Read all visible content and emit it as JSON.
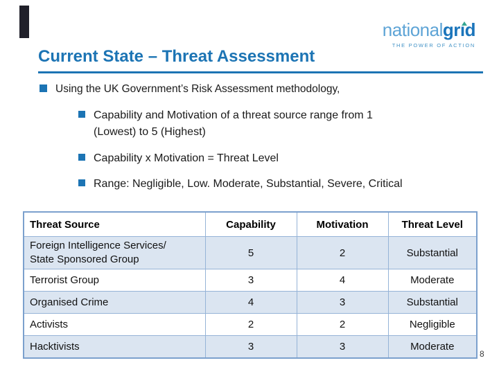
{
  "logo": {
    "part1": "national",
    "part2": "grid",
    "part2_pre": "gr",
    "part2_i": "ı",
    "part2_post": "d",
    "tagline": "THE POWER OF ACTION"
  },
  "title": "Current State – Threat Assessment",
  "bullets": {
    "level1": "Using the UK Government’s Risk Assessment methodology,",
    "level2": [
      "Capability and Motivation of a threat source range from 1\n(Lowest) to 5 (Highest)",
      "Capability x Motivation = Threat Level",
      "Range: Negligible, Low. Moderate, Substantial, Severe, Critical"
    ]
  },
  "table": {
    "headers": [
      "Threat Source",
      "Capability",
      "Motivation",
      "Threat Level"
    ],
    "rows": [
      {
        "source": "Foreign Intelligence Services/\nState Sponsored Group",
        "capability": "5",
        "motivation": "2",
        "threat_level": "Substantial"
      },
      {
        "source": "Terrorist Group",
        "capability": "3",
        "motivation": "4",
        "threat_level": "Moderate"
      },
      {
        "source": "Organised Crime",
        "capability": "4",
        "motivation": "3",
        "threat_level": "Substantial"
      },
      {
        "source": "Activists",
        "capability": "2",
        "motivation": "2",
        "threat_level": "Negligible"
      },
      {
        "source": "Hacktivists",
        "capability": "3",
        "motivation": "3",
        "threat_level": "Moderate"
      }
    ]
  },
  "page_number": "8",
  "colors": {
    "title_blue": "#1c74b4",
    "logo_light_blue": "#5ea4d6",
    "logo_dark_blue": "#1b75bb",
    "logo_accent_teal": "#35a793",
    "tagline_blue": "#4292c6",
    "table_border_inner": "#95b3d7",
    "table_border_outer": "#7ba0cd",
    "table_band_fill": "#dbe5f1",
    "body_text": "#1a1a1a",
    "dark_bar": "#20202a"
  }
}
